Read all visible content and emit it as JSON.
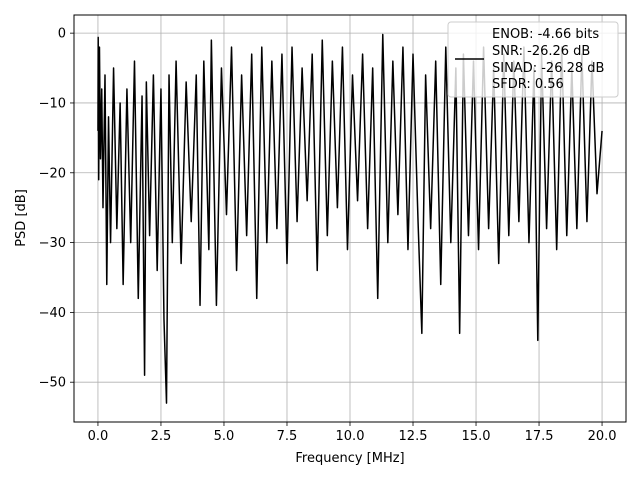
{
  "chart_data": {
    "type": "line",
    "xlabel": "Frequency [MHz]",
    "ylabel": "PSD [dB]",
    "xlim": [
      -0.95,
      20.95
    ],
    "ylim": [
      -55.7,
      2.6
    ],
    "xticks": [
      0.0,
      2.5,
      5.0,
      7.5,
      10.0,
      12.5,
      15.0,
      17.5,
      20.0
    ],
    "xtick_labels": [
      "0.0",
      "2.5",
      "5.0",
      "7.5",
      "10.0",
      "12.5",
      "15.0",
      "17.5",
      "20.0"
    ],
    "yticks": [
      0,
      -10,
      -20,
      -30,
      -40,
      -50
    ],
    "ytick_labels": [
      "0",
      "−10",
      "−20",
      "−30",
      "−40",
      "−50"
    ],
    "grid": true,
    "legend_position": "top-right",
    "legend_entries": [
      "ENOB: -4.66 bits",
      "SNR: -26.26 dB",
      "SINAD: -26.28 dB",
      "SFDR: 0.56"
    ],
    "series": [
      {
        "color": "#000000",
        "x": [
          0.0,
          0.01,
          0.03,
          0.06,
          0.1,
          0.15,
          0.2,
          0.28,
          0.35,
          0.42,
          0.5,
          0.62,
          0.75,
          0.88,
          1.0,
          1.15,
          1.3,
          1.45,
          1.6,
          1.75,
          1.85,
          1.92,
          2.05,
          2.2,
          2.35,
          2.5,
          2.62,
          2.72,
          2.82,
          2.95,
          3.1,
          3.3,
          3.5,
          3.7,
          3.9,
          4.05,
          4.2,
          4.4,
          4.5,
          4.7,
          4.9,
          5.1,
          5.3,
          5.5,
          5.7,
          5.9,
          6.1,
          6.3,
          6.5,
          6.7,
          6.9,
          7.1,
          7.3,
          7.5,
          7.7,
          7.9,
          8.1,
          8.3,
          8.5,
          8.7,
          8.9,
          9.1,
          9.3,
          9.5,
          9.7,
          9.9,
          10.1,
          10.3,
          10.5,
          10.7,
          10.9,
          11.1,
          11.3,
          11.5,
          11.7,
          11.9,
          12.1,
          12.3,
          12.5,
          12.7,
          12.85,
          13.0,
          13.2,
          13.4,
          13.6,
          13.8,
          14.0,
          14.2,
          14.35,
          14.5,
          14.7,
          14.9,
          15.1,
          15.3,
          15.5,
          15.7,
          15.9,
          16.1,
          16.3,
          16.5,
          16.7,
          16.9,
          17.1,
          17.3,
          17.45,
          17.6,
          17.8,
          18.0,
          18.2,
          18.4,
          18.6,
          18.8,
          19.0,
          19.2,
          19.4,
          19.6,
          19.8,
          20.0
        ],
        "y": [
          -14,
          -0.6,
          -21,
          -2,
          -18,
          -8,
          -25,
          -6,
          -36,
          -12,
          -30,
          -5,
          -28,
          -10,
          -36,
          -8,
          -30,
          -4,
          -38,
          -9,
          -49,
          -7,
          -29,
          -6,
          -34,
          -8,
          -41,
          -53,
          -6,
          -30,
          -4,
          -33,
          -7,
          -27,
          -6,
          -39,
          -4,
          -31,
          -1,
          -39,
          -5,
          -26,
          -2,
          -34,
          -6,
          -29,
          -3,
          -38,
          -2,
          -30,
          -4,
          -28,
          -3,
          -33,
          -2,
          -27,
          -5,
          -24,
          -3,
          -34,
          -1,
          -29,
          -4,
          -25,
          -2,
          -31,
          -6,
          -24,
          -3,
          -28,
          -5,
          -38,
          -0.2,
          -30,
          -4,
          -26,
          -2,
          -31,
          -3,
          -27,
          -43,
          -6,
          -28,
          -4,
          -36,
          -2,
          -30,
          -5,
          -43,
          -3,
          -29,
          -4,
          -31,
          -2,
          -28,
          -5,
          -33,
          -3,
          -29,
          -4,
          -27,
          -2,
          -30,
          -5,
          -44,
          -3,
          -28,
          -4,
          -31,
          -2,
          -29,
          -5,
          -28,
          -3,
          -27,
          -4,
          -23,
          -14
        ]
      }
    ]
  }
}
